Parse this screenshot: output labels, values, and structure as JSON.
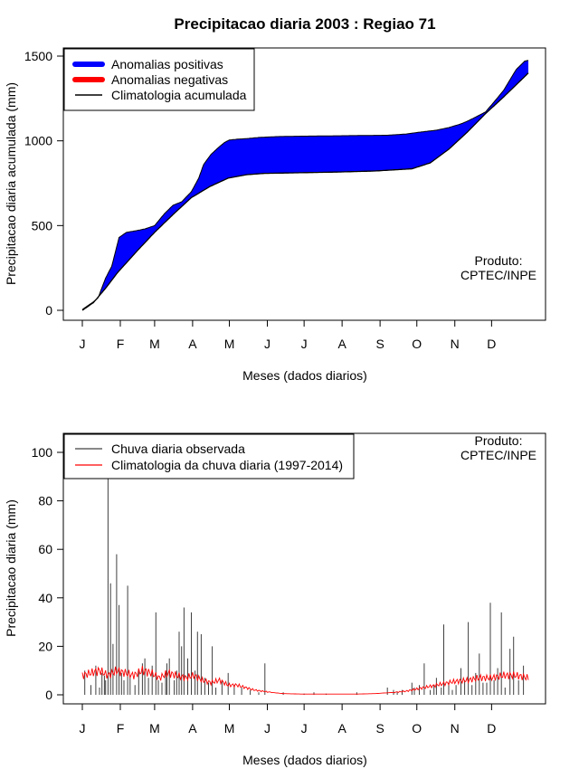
{
  "page_title": "Precipitacao diaria 2003 : Regiao 71",
  "colors": {
    "positive": "#0000ff",
    "negative": "#ff0000",
    "climatology": "#000000",
    "observed": "#404040",
    "daily_clim": "#ff0000"
  },
  "chart_data": [
    {
      "type": "area",
      "name": "accumulated",
      "ylabel": "Precipitacao diaria acumulada (mm)",
      "xlabel": "Meses (dados diarios)",
      "x_ticks": [
        "J",
        "F",
        "M",
        "A",
        "M",
        "J",
        "J",
        "A",
        "S",
        "O",
        "N",
        "D"
      ],
      "ylim": [
        0,
        1500
      ],
      "y_ticks": [
        0,
        500,
        1000,
        1500
      ],
      "legend": [
        "Anomalias positivas",
        "Anomalias negativas",
        "Climatologia acumulada"
      ],
      "credit_line1": "Produto:",
      "credit_line2": "CPTEC/INPE",
      "observed_accum": {
        "day": [
          1,
          5,
          10,
          14,
          16,
          20,
          25,
          31,
          37,
          45,
          52,
          60,
          68,
          75,
          82,
          90,
          96,
          100,
          106,
          112,
          117,
          121,
          128,
          135,
          145,
          160,
          175,
          200,
          225,
          250,
          265,
          275,
          290,
          300,
          310,
          315,
          320,
          330,
          340,
          345,
          350,
          355,
          362,
          365
        ],
        "mm": [
          5,
          25,
          50,
          75,
          115,
          190,
          260,
          430,
          460,
          470,
          480,
          500,
          570,
          620,
          640,
          700,
          780,
          860,
          920,
          960,
          990,
          1005,
          1010,
          1013,
          1020,
          1025,
          1027,
          1029,
          1031,
          1033,
          1040,
          1050,
          1063,
          1078,
          1100,
          1115,
          1133,
          1170,
          1255,
          1300,
          1360,
          1420,
          1470,
          1475
        ]
      },
      "climatology_accum": {
        "day": [
          1,
          10,
          20,
          30,
          45,
          60,
          75,
          90,
          105,
          120,
          135,
          150,
          180,
          210,
          240,
          270,
          285,
          300,
          315,
          330,
          345,
          365
        ],
        "mm": [
          0,
          45,
          130,
          225,
          345,
          460,
          565,
          665,
          730,
          780,
          800,
          808,
          812,
          816,
          822,
          835,
          870,
          950,
          1050,
          1160,
          1260,
          1400
        ]
      }
    },
    {
      "type": "bar",
      "name": "daily",
      "ylabel": "Precipitacao diaria (mm)",
      "xlabel": "Meses (dados diarios)",
      "x_ticks": [
        "J",
        "F",
        "M",
        "A",
        "M",
        "J",
        "J",
        "A",
        "S",
        "O",
        "N",
        "D"
      ],
      "ylim": [
        0,
        105
      ],
      "y_ticks": [
        0,
        20,
        40,
        60,
        80,
        100
      ],
      "legend": [
        "Chuva diaria observada",
        "Climatologia da chuva diaria (1997-2014)"
      ],
      "credit_line1": "Produto:",
      "credit_line2": "CPTEC/INPE",
      "observed_spikes": {
        "day": [
          3,
          8,
          12,
          15,
          17,
          19,
          20,
          22,
          24,
          26,
          29,
          31,
          33,
          35,
          38,
          40,
          44,
          47,
          50,
          52,
          55,
          58,
          61,
          63,
          66,
          69,
          70,
          72,
          76,
          78,
          80,
          82,
          84,
          87,
          90,
          93,
          95,
          98,
          101,
          104,
          107,
          110,
          115,
          120,
          125,
          131,
          138,
          145,
          150,
          165,
          182,
          190,
          200,
          225,
          250,
          255,
          258,
          262,
          270,
          272,
          276,
          280,
          285,
          288,
          290,
          294,
          296,
          300,
          303,
          306,
          310,
          313,
          316,
          319,
          322,
          325,
          328,
          331,
          334,
          337,
          340,
          343,
          346,
          350,
          353,
          357,
          361
        ],
        "mm": [
          10,
          4,
          12,
          3,
          9,
          8,
          6,
          92,
          46,
          21,
          58,
          37,
          9,
          6,
          45,
          8,
          4,
          10,
          13,
          15,
          7,
          12,
          34,
          6,
          5,
          9,
          13,
          15,
          6,
          10,
          26,
          20,
          36,
          15,
          34,
          10,
          26,
          25,
          7,
          5,
          20,
          3,
          6,
          9,
          4,
          3,
          2,
          1,
          13,
          1,
          0.5,
          1,
          0.5,
          1,
          3,
          2,
          1,
          2,
          5,
          3,
          4,
          13,
          2,
          4,
          7,
          3,
          29,
          5,
          2,
          4,
          11,
          6,
          30,
          4,
          9,
          17,
          5,
          5,
          38,
          6,
          11,
          34,
          3,
          19,
          24,
          6,
          12
        ]
      },
      "climatology_daily": {
        "day": [
          1,
          8,
          15,
          22,
          29,
          36,
          43,
          50,
          57,
          64,
          71,
          78,
          85,
          92,
          99,
          106,
          113,
          120,
          127,
          134,
          141,
          148,
          155,
          165,
          180,
          195,
          210,
          225,
          240,
          255,
          265,
          275,
          285,
          295,
          305,
          315,
          325,
          335,
          345,
          355,
          365
        ],
        "mm": [
          8,
          9,
          10,
          8,
          10,
          9,
          8,
          10,
          9,
          7,
          9,
          8,
          7,
          8,
          6,
          5,
          6,
          4,
          4,
          3,
          2,
          1.5,
          1,
          0.5,
          0.3,
          0.3,
          0.3,
          0.3,
          0.5,
          1,
          1.5,
          2.5,
          3.5,
          4.5,
          5.5,
          6,
          7,
          7,
          8,
          8,
          7
        ]
      }
    }
  ]
}
